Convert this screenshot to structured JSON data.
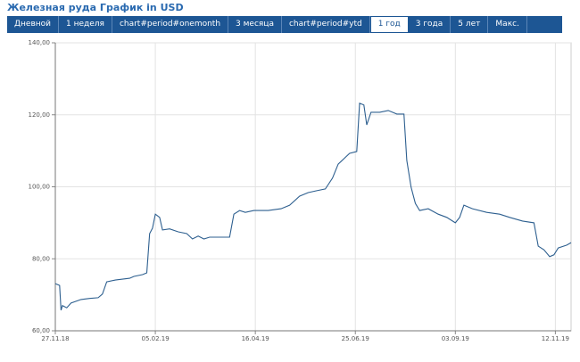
{
  "chart_data": {
    "type": "line",
    "title": "Железная руда График in USD",
    "tabs": [
      {
        "label": "Дневной"
      },
      {
        "label": "1 неделя"
      },
      {
        "label": "chart#period#onemonth"
      },
      {
        "label": "3 месяца"
      },
      {
        "label": "chart#period#ytd"
      },
      {
        "label": "1 год",
        "active": true
      },
      {
        "label": "3 года"
      },
      {
        "label": "5 лет"
      },
      {
        "label": "Макс."
      }
    ],
    "x": [
      "2018-11-27",
      "2018-11-30",
      "2018-12-01",
      "2018-12-02",
      "2018-12-05",
      "2018-12-08",
      "2018-12-15",
      "2018-12-21",
      "2018-12-27",
      "2018-12-30",
      "2019-01-02",
      "2019-01-08",
      "2019-01-18",
      "2019-01-21",
      "2019-01-27",
      "2019-01-30",
      "2019-02-01",
      "2019-02-03",
      "2019-02-05",
      "2019-02-08",
      "2019-02-10",
      "2019-02-15",
      "2019-02-21",
      "2019-02-27",
      "2019-03-03",
      "2019-03-07",
      "2019-03-11",
      "2019-03-15",
      "2019-03-18",
      "2019-03-29",
      "2019-04-01",
      "2019-04-05",
      "2019-04-09",
      "2019-04-15",
      "2019-04-25",
      "2019-05-04",
      "2019-05-10",
      "2019-05-17",
      "2019-05-23",
      "2019-05-29",
      "2019-06-04",
      "2019-06-09",
      "2019-06-13",
      "2019-06-17",
      "2019-06-21",
      "2019-06-26",
      "2019-06-28",
      "2019-07-01",
      "2019-07-03",
      "2019-07-06",
      "2019-07-12",
      "2019-07-18",
      "2019-07-24",
      "2019-07-29",
      "2019-07-31",
      "2019-08-03",
      "2019-08-06",
      "2019-08-09",
      "2019-08-15",
      "2019-08-22",
      "2019-08-28",
      "2019-09-03",
      "2019-09-06",
      "2019-09-09",
      "2019-09-15",
      "2019-09-25",
      "2019-10-04",
      "2019-10-11",
      "2019-10-20",
      "2019-10-28",
      "2019-10-31",
      "2019-11-04",
      "2019-11-08",
      "2019-11-11",
      "2019-11-14",
      "2019-11-20",
      "2019-11-23"
    ],
    "series": [
      {
        "name": "USD",
        "color": "#2d5f8f",
        "values": [
          73.1,
          72.6,
          65.7,
          67,
          66.4,
          67.7,
          68.7,
          69,
          69.2,
          70.2,
          73.6,
          74.1,
          74.6,
          75.1,
          75.6,
          76.1,
          87,
          88.5,
          92.4,
          91.5,
          88,
          88.3,
          87.5,
          87,
          85.5,
          86.3,
          85.5,
          86,
          86,
          86,
          92.4,
          93.4,
          92.9,
          93.4,
          93.4,
          93.9,
          94.9,
          97.4,
          98.4,
          98.9,
          99.4,
          102.4,
          106.3,
          107.8,
          109.3,
          109.8,
          123.2,
          122.7,
          117.2,
          120.7,
          120.7,
          121.2,
          120.2,
          120.2,
          107.3,
          99.9,
          95.4,
          93.4,
          93.9,
          92.4,
          91.5,
          90,
          91.5,
          94.9,
          93.9,
          92.9,
          92.4,
          91.5,
          90.5,
          90,
          83.5,
          82.5,
          80.6,
          81.1,
          83,
          83.8,
          84.5
        ]
      }
    ],
    "xlim": [
      "2018-11-27",
      "2019-11-23"
    ],
    "xticks": [
      {
        "value": "2018-11-27",
        "label": "27.11.18"
      },
      {
        "value": "2019-02-05",
        "label": "05.02.19"
      },
      {
        "value": "2019-04-16",
        "label": "16.04.19"
      },
      {
        "value": "2019-06-25",
        "label": "25.06.19"
      },
      {
        "value": "2019-09-03",
        "label": "03.09.19"
      },
      {
        "value": "2019-11-12",
        "label": "12.11.19"
      }
    ],
    "ylim": [
      60,
      140
    ],
    "yticks": [
      {
        "value": 60,
        "label": "60,00"
      },
      {
        "value": 80,
        "label": "80,00"
      },
      {
        "value": 100,
        "label": "100,00"
      },
      {
        "value": 120,
        "label": "120,00"
      },
      {
        "value": 140,
        "label": "140,00"
      }
    ],
    "grid": true
  }
}
